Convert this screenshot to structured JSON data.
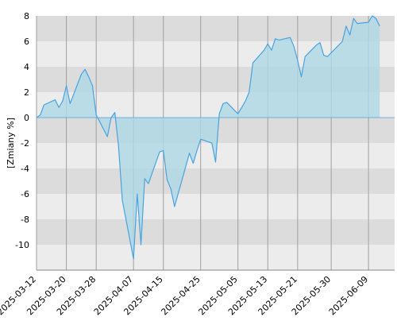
{
  "chart_data": {
    "type": "area",
    "title": "",
    "xlabel": "",
    "ylabel": "[Zmiany %]",
    "ylim": [
      -12,
      8
    ],
    "yticks": [
      -10,
      -8,
      -6,
      -4,
      -2,
      0,
      2,
      4,
      6,
      8
    ],
    "xlim": [
      "2025-03-12",
      "2025-06-16"
    ],
    "xticks": [
      "2025-03-12",
      "2025-03-20",
      "2025-03-28",
      "2025-04-07",
      "2025-04-15",
      "2025-04-25",
      "2025-05-05",
      "2025-05-13",
      "2025-05-21",
      "2025-05-30",
      "2025-06-09"
    ],
    "grid": "horizontal bands alternating grey, vertical lines at tick dates",
    "colors": {
      "line": "#4aa3df",
      "fill": "#add8e6",
      "band_dark": "#dcdcdc",
      "band_light": "#ececec",
      "vgrid": "#a0a0a0"
    },
    "series": [
      {
        "name": "",
        "points": [
          [
            "2025-03-12",
            0.0
          ],
          [
            "2025-03-13",
            0.2
          ],
          [
            "2025-03-14",
            1.0
          ],
          [
            "2025-03-17",
            1.4
          ],
          [
            "2025-03-18",
            0.8
          ],
          [
            "2025-03-19",
            1.3
          ],
          [
            "2025-03-20",
            2.5
          ],
          [
            "2025-03-21",
            1.1
          ],
          [
            "2025-03-24",
            3.4
          ],
          [
            "2025-03-25",
            3.8
          ],
          [
            "2025-03-26",
            3.2
          ],
          [
            "2025-03-27",
            2.5
          ],
          [
            "2025-03-28",
            0.2
          ],
          [
            "2025-03-31",
            -1.5
          ],
          [
            "2025-04-01",
            0.0
          ],
          [
            "2025-04-02",
            0.4
          ],
          [
            "2025-04-03",
            -2.3
          ],
          [
            "2025-04-04",
            -6.5
          ],
          [
            "2025-04-07",
            -11.1
          ],
          [
            "2025-04-08",
            -6.0
          ],
          [
            "2025-04-09",
            -10.0
          ],
          [
            "2025-04-10",
            -4.8
          ],
          [
            "2025-04-11",
            -5.2
          ],
          [
            "2025-04-14",
            -2.7
          ],
          [
            "2025-04-15",
            -2.6
          ],
          [
            "2025-04-16",
            -4.9
          ],
          [
            "2025-04-17",
            -5.6
          ],
          [
            "2025-04-18",
            -7.0
          ],
          [
            "2025-04-22",
            -2.8
          ],
          [
            "2025-04-23",
            -3.6
          ],
          [
            "2025-04-24",
            -2.6
          ],
          [
            "2025-04-25",
            -1.7
          ],
          [
            "2025-04-28",
            -2.0
          ],
          [
            "2025-04-29",
            -3.5
          ],
          [
            "2025-04-30",
            0.3
          ],
          [
            "2025-05-01",
            1.1
          ],
          [
            "2025-05-02",
            1.2
          ],
          [
            "2025-05-05",
            0.3
          ],
          [
            "2025-05-06",
            0.8
          ],
          [
            "2025-05-07",
            1.3
          ],
          [
            "2025-05-08",
            2.0
          ],
          [
            "2025-05-09",
            4.3
          ],
          [
            "2025-05-12",
            5.3
          ],
          [
            "2025-05-13",
            5.8
          ],
          [
            "2025-05-14",
            5.3
          ],
          [
            "2025-05-15",
            6.2
          ],
          [
            "2025-05-16",
            6.1
          ],
          [
            "2025-05-19",
            6.3
          ],
          [
            "2025-05-20",
            5.6
          ],
          [
            "2025-05-21",
            4.5
          ],
          [
            "2025-05-22",
            3.2
          ],
          [
            "2025-05-23",
            4.8
          ],
          [
            "2025-05-26",
            5.7
          ],
          [
            "2025-05-27",
            5.9
          ],
          [
            "2025-05-28",
            4.9
          ],
          [
            "2025-05-29",
            4.8
          ],
          [
            "2025-06-02",
            6.0
          ],
          [
            "2025-06-03",
            7.2
          ],
          [
            "2025-06-04",
            6.5
          ],
          [
            "2025-06-05",
            7.8
          ],
          [
            "2025-06-06",
            7.4
          ],
          [
            "2025-06-09",
            7.5
          ],
          [
            "2025-06-10",
            8.0
          ],
          [
            "2025-06-11",
            7.8
          ],
          [
            "2025-06-12",
            7.2
          ]
        ]
      }
    ]
  }
}
